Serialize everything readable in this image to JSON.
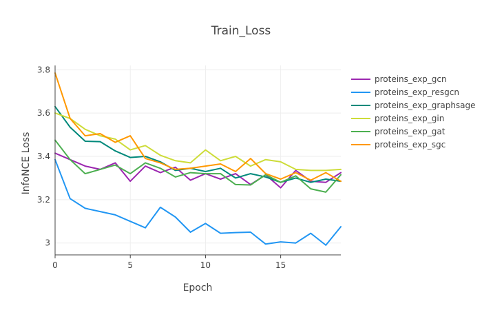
{
  "chart_data": {
    "type": "line",
    "title": "Train_Loss",
    "xlabel": "Epoch",
    "ylabel": "InfoNCE Loss",
    "xlim": [
      0,
      19
    ],
    "ylim": [
      2.945,
      3.82
    ],
    "xticks": [
      0,
      5,
      10,
      15
    ],
    "yticks": [
      3.0,
      3.2,
      3.4,
      3.6,
      3.8
    ],
    "ytick_labels": [
      "3",
      "3.2",
      "3.4",
      "3.6",
      "3.8"
    ],
    "grid": true,
    "legend_position": "right",
    "x": [
      0,
      1,
      2,
      3,
      4,
      5,
      6,
      7,
      8,
      9,
      10,
      11,
      12,
      13,
      14,
      15,
      16,
      17,
      18,
      19
    ],
    "series": [
      {
        "name": "proteins_exp_gcn",
        "color": "#9c27b0",
        "values": [
          3.415,
          3.385,
          3.355,
          3.34,
          3.37,
          3.285,
          3.355,
          3.325,
          3.35,
          3.29,
          3.32,
          3.295,
          3.32,
          3.27,
          3.315,
          3.255,
          3.335,
          3.285,
          3.28,
          3.325
        ]
      },
      {
        "name": "proteins_exp_resgcn",
        "color": "#2196f3",
        "values": [
          3.385,
          3.205,
          3.16,
          3.145,
          3.13,
          3.1,
          3.07,
          3.165,
          3.12,
          3.05,
          3.09,
          3.045,
          3.048,
          3.05,
          2.995,
          3.005,
          3.0,
          3.045,
          2.99,
          3.075
        ]
      },
      {
        "name": "proteins_exp_graphsage",
        "color": "#00897b",
        "values": [
          3.63,
          3.535,
          3.47,
          3.468,
          3.425,
          3.395,
          3.4,
          3.375,
          3.335,
          3.345,
          3.33,
          3.345,
          3.3,
          3.32,
          3.305,
          3.28,
          3.3,
          3.28,
          3.295,
          3.285
        ]
      },
      {
        "name": "proteins_exp_gin",
        "color": "#cddc39",
        "values": [
          3.6,
          3.575,
          3.525,
          3.495,
          3.48,
          3.43,
          3.45,
          3.405,
          3.38,
          3.37,
          3.43,
          3.38,
          3.4,
          3.355,
          3.385,
          3.375,
          3.34,
          3.335,
          3.335,
          3.34
        ]
      },
      {
        "name": "proteins_exp_gat",
        "color": "#4caf50",
        "values": [
          3.475,
          3.385,
          3.32,
          3.34,
          3.36,
          3.32,
          3.37,
          3.345,
          3.305,
          3.325,
          3.32,
          3.32,
          3.27,
          3.268,
          3.315,
          3.28,
          3.31,
          3.25,
          3.235,
          3.315
        ]
      },
      {
        "name": "proteins_exp_sgc",
        "color": "#ff9800",
        "values": [
          3.785,
          3.575,
          3.495,
          3.505,
          3.465,
          3.495,
          3.39,
          3.37,
          3.34,
          3.345,
          3.355,
          3.365,
          3.33,
          3.39,
          3.32,
          3.295,
          3.325,
          3.29,
          3.325,
          3.285
        ]
      }
    ]
  }
}
